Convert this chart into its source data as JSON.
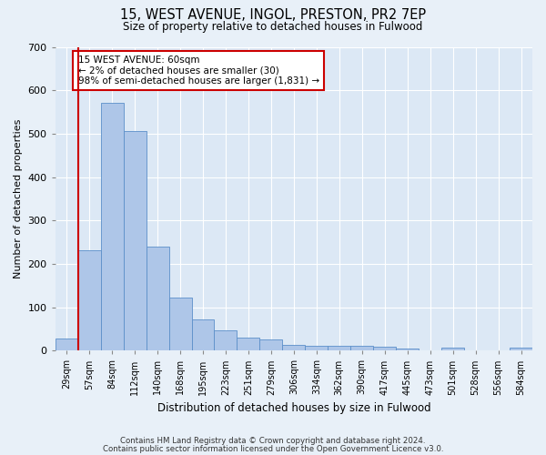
{
  "title1": "15, WEST AVENUE, INGOL, PRESTON, PR2 7EP",
  "title2": "Size of property relative to detached houses in Fulwood",
  "xlabel": "Distribution of detached houses by size in Fulwood",
  "ylabel": "Number of detached properties",
  "categories": [
    "29sqm",
    "57sqm",
    "84sqm",
    "112sqm",
    "140sqm",
    "168sqm",
    "195sqm",
    "223sqm",
    "251sqm",
    "279sqm",
    "306sqm",
    "334sqm",
    "362sqm",
    "390sqm",
    "417sqm",
    "445sqm",
    "473sqm",
    "501sqm",
    "528sqm",
    "556sqm",
    "584sqm"
  ],
  "values": [
    28,
    232,
    571,
    507,
    240,
    123,
    71,
    46,
    29,
    25,
    13,
    10,
    12,
    11,
    8,
    5,
    0,
    7,
    0,
    0,
    7
  ],
  "bar_color": "#aec6e8",
  "bar_edge_color": "#5b8fc9",
  "vline_color": "#cc0000",
  "annotation_title": "15 WEST AVENUE: 60sqm",
  "annotation_line2": "← 2% of detached houses are smaller (30)",
  "annotation_line3": "98% of semi-detached houses are larger (1,831) →",
  "annotation_box_color": "#ffffff",
  "annotation_border_color": "#cc0000",
  "ylim": [
    0,
    700
  ],
  "yticks": [
    0,
    100,
    200,
    300,
    400,
    500,
    600,
    700
  ],
  "bg_color": "#dce8f5",
  "fig_bg_color": "#e8f0f8",
  "footer1": "Contains HM Land Registry data © Crown copyright and database right 2024.",
  "footer2": "Contains public sector information licensed under the Open Government Licence v3.0."
}
